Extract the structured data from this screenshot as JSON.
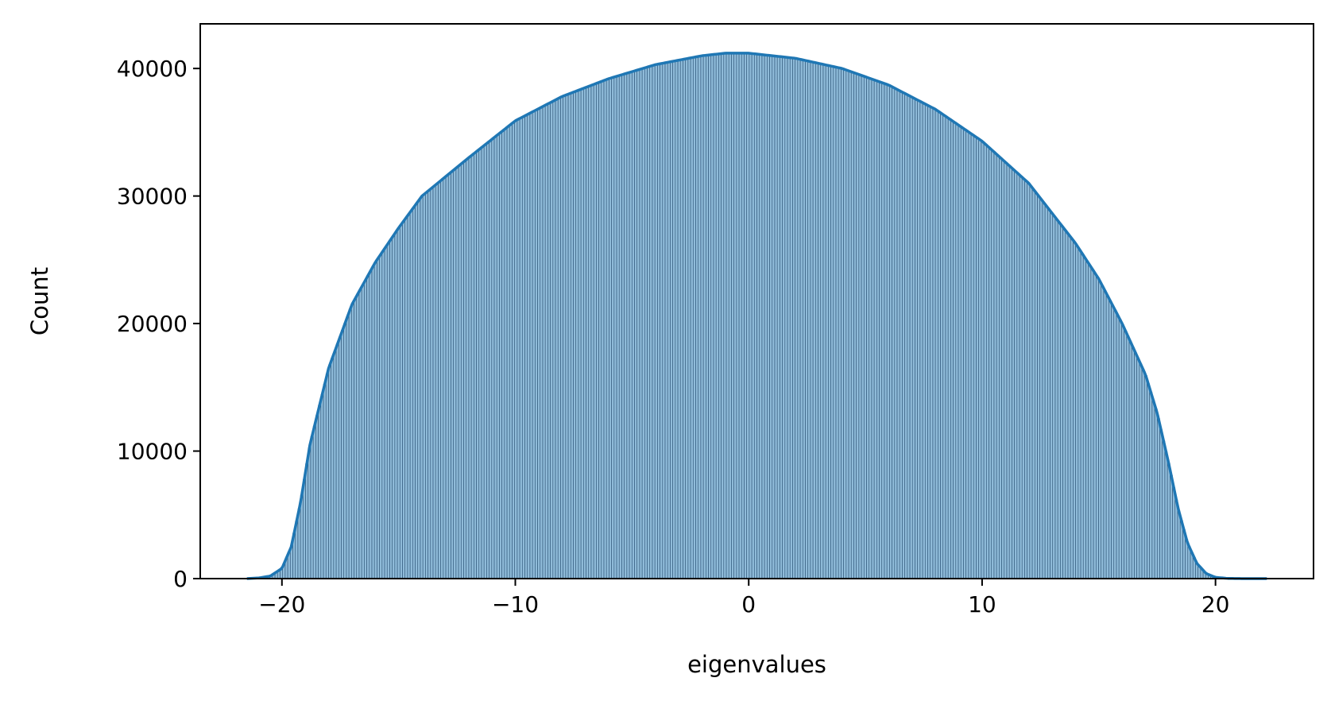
{
  "chart_data": {
    "type": "bar",
    "title": "",
    "xlabel": "eigenvalues",
    "ylabel": "Count",
    "xlim": [
      -23.5,
      24.2
    ],
    "ylim": [
      0,
      43500
    ],
    "grid": false,
    "legend": "none",
    "x_ticks": [
      -20,
      -10,
      0,
      10,
      20
    ],
    "x_tick_labels": [
      "−20",
      "−10",
      "0",
      "10",
      "20"
    ],
    "y_ticks": [
      0,
      10000,
      20000,
      30000,
      40000
    ],
    "y_tick_labels": [
      "0",
      "10000",
      "20000",
      "30000",
      "40000"
    ],
    "histogram": {
      "range": [
        -21.5,
        22.2
      ],
      "bins": 400,
      "peak_count": 41200,
      "bar_color": "#1f77b4",
      "bar_fill_opacity": 0.5
    },
    "kde_line": {
      "color": "#1f77b4",
      "x": [
        -21.5,
        -21.0,
        -20.5,
        -20.0,
        -19.6,
        -19.2,
        -18.8,
        -18.4,
        -18.0,
        -17.5,
        -17.0,
        -16.0,
        -15.0,
        -14.0,
        -12.0,
        -10.0,
        -8.0,
        -6.0,
        -4.0,
        -2.0,
        -1.0,
        0.0,
        1.0,
        2.0,
        4.0,
        6.0,
        8.0,
        10.0,
        12.0,
        14.0,
        15.0,
        16.0,
        17.0,
        17.5,
        18.0,
        18.4,
        18.8,
        19.2,
        19.6,
        20.0,
        20.5,
        21.0,
        21.5,
        22.2
      ],
      "counts": [
        0,
        50,
        200,
        800,
        2500,
        6000,
        10500,
        13500,
        16500,
        19000,
        21500,
        24800,
        27500,
        30000,
        33000,
        35900,
        37800,
        39200,
        40300,
        41000,
        41200,
        41200,
        41000,
        40800,
        40000,
        38700,
        36800,
        34300,
        31000,
        26300,
        23500,
        20000,
        16000,
        13000,
        9000,
        5500,
        2800,
        1200,
        400,
        100,
        20,
        5,
        0,
        0
      ]
    }
  }
}
